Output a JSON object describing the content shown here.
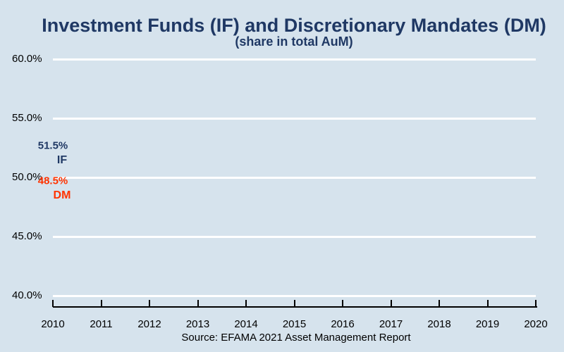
{
  "page": {
    "background_color": "#D6E3ED",
    "gridline_color": "#FFFFFF",
    "axis_color": "#000000"
  },
  "header": {
    "title": "Investment Funds (IF) and Discretionary Mandates (DM)",
    "subtitle": "(share in total AuM)",
    "title_color": "#1F3864"
  },
  "footer": {
    "source": "Source: EFAMA 2021 Asset Management Report"
  },
  "chart_data": {
    "type": "line",
    "title": "Investment Funds (IF) and Discretionary Mandates (DM)",
    "subtitle": "(share in total AuM)",
    "x": [
      2010,
      2011,
      2012,
      2013,
      2014,
      2015,
      2016,
      2017,
      2018,
      2019,
      2020
    ],
    "x_tick_labels": [
      "2010",
      "2011",
      "2012",
      "2013",
      "2014",
      "2015",
      "2016",
      "2017",
      "2018",
      "2019",
      "2020"
    ],
    "series": [
      {
        "name": "IF",
        "color": "#1F3864",
        "values": [
          51.5
        ],
        "value_labels": [
          "51.5%"
        ]
      },
      {
        "name": "DM",
        "color": "#FF3300",
        "values": [
          48.5
        ],
        "value_labels": [
          "48.5%"
        ]
      }
    ],
    "ylim": [
      40,
      60
    ],
    "yticks": [
      60,
      55,
      50,
      45,
      40
    ],
    "ytick_labels": [
      "60.0%",
      "55.0%",
      "50.0%",
      "45.0%",
      "40.0%"
    ],
    "grid": "horizontal-white",
    "legend_position": "none",
    "notes": "Only the first data point (2010) is labeled; no line path is drawn in this frame."
  }
}
